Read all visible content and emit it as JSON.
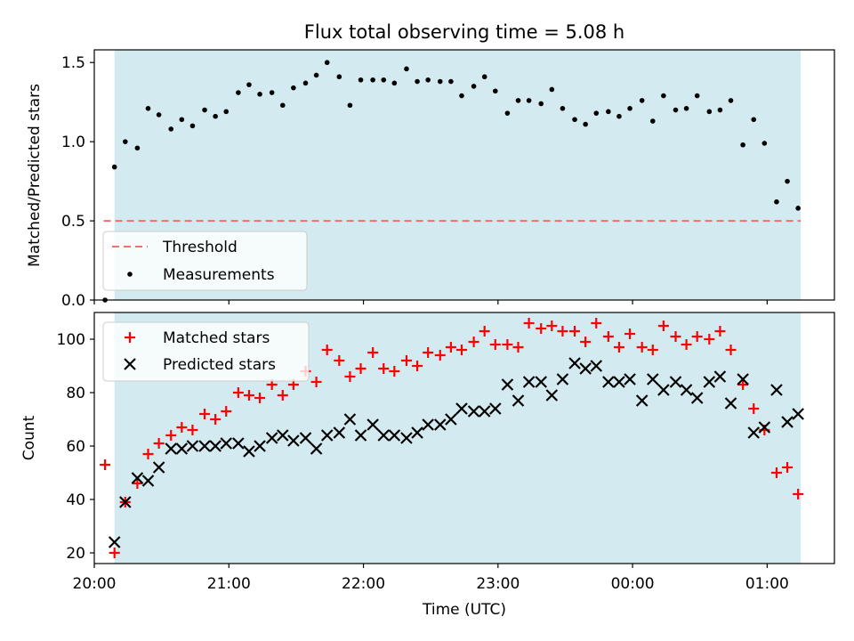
{
  "figure": {
    "title": "Flux total observing time = 5.08 h",
    "xlabel": "Time (UTC)",
    "x_ticks": [
      "20:00",
      "21:00",
      "22:00",
      "23:00",
      "00:00",
      "01:00"
    ],
    "x_tick_hours": [
      0,
      1,
      2,
      3,
      4,
      5
    ],
    "x_origin": "20:00",
    "observing_window_hours": [
      0.15,
      5.25
    ],
    "shade_color": "#d3eaf0"
  },
  "chart_data": [
    {
      "type": "scatter",
      "ylabel": "Matched/Predicted stars",
      "ylim": [
        0,
        1.58
      ],
      "yticks": [
        "0.0",
        "0.5",
        "1.0",
        "1.5"
      ],
      "ytick_values": [
        0,
        0.5,
        1.0,
        1.5
      ],
      "legend_position": "lower-left",
      "threshold": {
        "name": "Threshold",
        "value": 0.5,
        "color": "#f07070",
        "x_range": [
          0.07,
          5.25
        ]
      },
      "series": [
        {
          "name": "Measurements",
          "color": "#000000",
          "points": [
            [
              0.08,
              0.0
            ],
            [
              0.15,
              0.84
            ],
            [
              0.23,
              1.0
            ],
            [
              0.32,
              0.96
            ],
            [
              0.4,
              1.21
            ],
            [
              0.48,
              1.17
            ],
            [
              0.57,
              1.08
            ],
            [
              0.65,
              1.14
            ],
            [
              0.73,
              1.1
            ],
            [
              0.82,
              1.2
            ],
            [
              0.9,
              1.16
            ],
            [
              0.98,
              1.19
            ],
            [
              1.07,
              1.31
            ],
            [
              1.15,
              1.36
            ],
            [
              1.23,
              1.3
            ],
            [
              1.32,
              1.31
            ],
            [
              1.4,
              1.23
            ],
            [
              1.48,
              1.34
            ],
            [
              1.57,
              1.37
            ],
            [
              1.65,
              1.42
            ],
            [
              1.73,
              1.5
            ],
            [
              1.82,
              1.41
            ],
            [
              1.9,
              1.23
            ],
            [
              1.98,
              1.39
            ],
            [
              2.07,
              1.39
            ],
            [
              2.15,
              1.39
            ],
            [
              2.23,
              1.37
            ],
            [
              2.32,
              1.46
            ],
            [
              2.4,
              1.38
            ],
            [
              2.48,
              1.39
            ],
            [
              2.57,
              1.38
            ],
            [
              2.65,
              1.38
            ],
            [
              2.73,
              1.29
            ],
            [
              2.82,
              1.35
            ],
            [
              2.9,
              1.41
            ],
            [
              2.98,
              1.32
            ],
            [
              3.07,
              1.18
            ],
            [
              3.15,
              1.26
            ],
            [
              3.23,
              1.26
            ],
            [
              3.32,
              1.24
            ],
            [
              3.4,
              1.33
            ],
            [
              3.48,
              1.21
            ],
            [
              3.57,
              1.14
            ],
            [
              3.65,
              1.11
            ],
            [
              3.73,
              1.18
            ],
            [
              3.82,
              1.19
            ],
            [
              3.9,
              1.16
            ],
            [
              3.98,
              1.21
            ],
            [
              4.07,
              1.26
            ],
            [
              4.15,
              1.13
            ],
            [
              4.23,
              1.29
            ],
            [
              4.32,
              1.2
            ],
            [
              4.4,
              1.21
            ],
            [
              4.48,
              1.29
            ],
            [
              4.57,
              1.19
            ],
            [
              4.65,
              1.2
            ],
            [
              4.73,
              1.26
            ],
            [
              4.82,
              0.98
            ],
            [
              4.9,
              1.14
            ],
            [
              4.98,
              0.99
            ],
            [
              5.07,
              0.62
            ],
            [
              5.15,
              0.75
            ],
            [
              5.23,
              0.58
            ]
          ]
        }
      ]
    },
    {
      "type": "scatter",
      "ylabel": "Count",
      "ylim": [
        16,
        110
      ],
      "yticks": [
        "20",
        "40",
        "60",
        "80",
        "100"
      ],
      "ytick_values": [
        20,
        40,
        60,
        80,
        100
      ],
      "legend_position": "upper-left",
      "series": [
        {
          "name": "Matched stars",
          "marker": "+",
          "color": "#ff0000",
          "points": [
            [
              0.08,
              53
            ],
            [
              0.15,
              20
            ],
            [
              0.23,
              39
            ],
            [
              0.32,
              46
            ],
            [
              0.4,
              57
            ],
            [
              0.48,
              61
            ],
            [
              0.57,
              64
            ],
            [
              0.65,
              67
            ],
            [
              0.73,
              66
            ],
            [
              0.82,
              72
            ],
            [
              0.9,
              70
            ],
            [
              0.98,
              73
            ],
            [
              1.07,
              80
            ],
            [
              1.15,
              79
            ],
            [
              1.23,
              78
            ],
            [
              1.32,
              83
            ],
            [
              1.4,
              79
            ],
            [
              1.48,
              83
            ],
            [
              1.57,
              88
            ],
            [
              1.65,
              84
            ],
            [
              1.73,
              96
            ],
            [
              1.82,
              92
            ],
            [
              1.9,
              86
            ],
            [
              1.98,
              89
            ],
            [
              2.07,
              95
            ],
            [
              2.15,
              89
            ],
            [
              2.23,
              88
            ],
            [
              2.32,
              92
            ],
            [
              2.4,
              90
            ],
            [
              2.48,
              95
            ],
            [
              2.57,
              94
            ],
            [
              2.65,
              97
            ],
            [
              2.73,
              96
            ],
            [
              2.82,
              99
            ],
            [
              2.9,
              103
            ],
            [
              2.98,
              98
            ],
            [
              3.07,
              98
            ],
            [
              3.15,
              97
            ],
            [
              3.23,
              106
            ],
            [
              3.32,
              104
            ],
            [
              3.4,
              105
            ],
            [
              3.48,
              103
            ],
            [
              3.57,
              103
            ],
            [
              3.65,
              99
            ],
            [
              3.73,
              106
            ],
            [
              3.82,
              101
            ],
            [
              3.9,
              97
            ],
            [
              3.98,
              102
            ],
            [
              4.07,
              97
            ],
            [
              4.15,
              96
            ],
            [
              4.23,
              105
            ],
            [
              4.32,
              101
            ],
            [
              4.4,
              98
            ],
            [
              4.48,
              101
            ],
            [
              4.57,
              100
            ],
            [
              4.65,
              103
            ],
            [
              4.73,
              96
            ],
            [
              4.82,
              83
            ],
            [
              4.9,
              74
            ],
            [
              4.98,
              66
            ],
            [
              5.07,
              50
            ],
            [
              5.15,
              52
            ],
            [
              5.23,
              42
            ]
          ]
        },
        {
          "name": "Predicted stars",
          "marker": "x",
          "color": "#000000",
          "points": [
            [
              0.15,
              24
            ],
            [
              0.23,
              39
            ],
            [
              0.32,
              48
            ],
            [
              0.4,
              47
            ],
            [
              0.48,
              52
            ],
            [
              0.57,
              59
            ],
            [
              0.65,
              59
            ],
            [
              0.73,
              60
            ],
            [
              0.82,
              60
            ],
            [
              0.9,
              60
            ],
            [
              0.98,
              61
            ],
            [
              1.07,
              61
            ],
            [
              1.15,
              58
            ],
            [
              1.23,
              60
            ],
            [
              1.32,
              63
            ],
            [
              1.4,
              64
            ],
            [
              1.48,
              62
            ],
            [
              1.57,
              63
            ],
            [
              1.65,
              59
            ],
            [
              1.73,
              64
            ],
            [
              1.82,
              65
            ],
            [
              1.9,
              70
            ],
            [
              1.98,
              64
            ],
            [
              2.07,
              68
            ],
            [
              2.15,
              64
            ],
            [
              2.23,
              64
            ],
            [
              2.32,
              63
            ],
            [
              2.4,
              65
            ],
            [
              2.48,
              68
            ],
            [
              2.57,
              68
            ],
            [
              2.65,
              70
            ],
            [
              2.73,
              74
            ],
            [
              2.82,
              73
            ],
            [
              2.9,
              73
            ],
            [
              2.98,
              74
            ],
            [
              3.07,
              83
            ],
            [
              3.15,
              77
            ],
            [
              3.23,
              84
            ],
            [
              3.32,
              84
            ],
            [
              3.4,
              79
            ],
            [
              3.48,
              85
            ],
            [
              3.57,
              91
            ],
            [
              3.65,
              89
            ],
            [
              3.73,
              90
            ],
            [
              3.82,
              84
            ],
            [
              3.9,
              84
            ],
            [
              3.98,
              85
            ],
            [
              4.07,
              77
            ],
            [
              4.15,
              85
            ],
            [
              4.23,
              81
            ],
            [
              4.32,
              84
            ],
            [
              4.4,
              81
            ],
            [
              4.48,
              78
            ],
            [
              4.57,
              84
            ],
            [
              4.65,
              86
            ],
            [
              4.73,
              76
            ],
            [
              4.82,
              85
            ],
            [
              4.9,
              65
            ],
            [
              4.98,
              67
            ],
            [
              5.07,
              81
            ],
            [
              5.15,
              69
            ],
            [
              5.23,
              72
            ]
          ]
        }
      ]
    }
  ]
}
